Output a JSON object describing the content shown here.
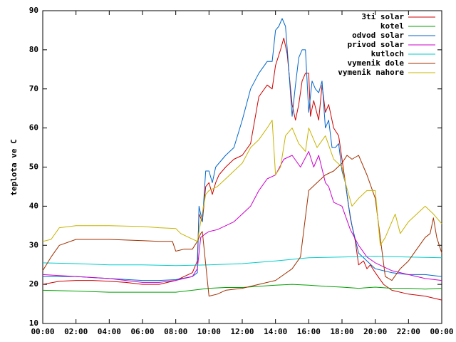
{
  "chart_data": {
    "type": "line",
    "title": "",
    "xlabel": "",
    "ylabel": "teplota ve C",
    "xlim": [
      0,
      24
    ],
    "ylim": [
      10,
      90
    ],
    "x_ticks": [
      {
        "value": 0,
        "label": "00:00"
      },
      {
        "value": 2,
        "label": "02:00"
      },
      {
        "value": 4,
        "label": "04:00"
      },
      {
        "value": 6,
        "label": "06:00"
      },
      {
        "value": 8,
        "label": "08:00"
      },
      {
        "value": 10,
        "label": "10:00"
      },
      {
        "value": 12,
        "label": "12:00"
      },
      {
        "value": 14,
        "label": "14:00"
      },
      {
        "value": 16,
        "label": "16:00"
      },
      {
        "value": 18,
        "label": "18:00"
      },
      {
        "value": 20,
        "label": "20:00"
      },
      {
        "value": 22,
        "label": "22:00"
      },
      {
        "value": 24,
        "label": "00:00"
      }
    ],
    "y_ticks": [
      10,
      20,
      30,
      40,
      50,
      60,
      70,
      80,
      90
    ],
    "grid": false,
    "legend_position": "top-right",
    "series": [
      {
        "name": "3ti solar",
        "color": "#cc0000",
        "points": [
          [
            0,
            20
          ],
          [
            1,
            20.8
          ],
          [
            2,
            21
          ],
          [
            3,
            21
          ],
          [
            4,
            20.8
          ],
          [
            5,
            20.5
          ],
          [
            6,
            20
          ],
          [
            7,
            20
          ],
          [
            8,
            21
          ],
          [
            9,
            23
          ],
          [
            9.3,
            26
          ],
          [
            9.4,
            38
          ],
          [
            9.6,
            36
          ],
          [
            9.8,
            45
          ],
          [
            10,
            46
          ],
          [
            10.2,
            43
          ],
          [
            10.4,
            46
          ],
          [
            10.6,
            48
          ],
          [
            11,
            50
          ],
          [
            11.5,
            52
          ],
          [
            12,
            53
          ],
          [
            12.5,
            56
          ],
          [
            13,
            68
          ],
          [
            13.5,
            71
          ],
          [
            13.8,
            70
          ],
          [
            14,
            76
          ],
          [
            14.3,
            80
          ],
          [
            14.5,
            83
          ],
          [
            14.7,
            79
          ],
          [
            15,
            66
          ],
          [
            15.2,
            62
          ],
          [
            15.4,
            66
          ],
          [
            15.6,
            72
          ],
          [
            15.8,
            74
          ],
          [
            16,
            74
          ],
          [
            16.1,
            63
          ],
          [
            16.3,
            67
          ],
          [
            16.6,
            62
          ],
          [
            16.8,
            71
          ],
          [
            17,
            64
          ],
          [
            17.2,
            66
          ],
          [
            17.5,
            60
          ],
          [
            17.8,
            58
          ],
          [
            18,
            52
          ],
          [
            18.2,
            46
          ],
          [
            18.5,
            37
          ],
          [
            18.8,
            31
          ],
          [
            19,
            25
          ],
          [
            19.3,
            26
          ],
          [
            19.5,
            24
          ],
          [
            19.7,
            25
          ],
          [
            20,
            23
          ],
          [
            20.5,
            20
          ],
          [
            21,
            18.5
          ],
          [
            22,
            17.5
          ],
          [
            23,
            17
          ],
          [
            24,
            16
          ]
        ]
      },
      {
        "name": "kotel",
        "color": "#00a000",
        "points": [
          [
            0,
            18.5
          ],
          [
            2,
            18.3
          ],
          [
            4,
            18
          ],
          [
            6,
            18
          ],
          [
            8,
            18
          ],
          [
            9,
            18.5
          ],
          [
            10,
            19
          ],
          [
            11,
            19.2
          ],
          [
            12,
            19.2
          ],
          [
            13,
            19.5
          ],
          [
            14,
            19.8
          ],
          [
            15,
            20
          ],
          [
            16,
            19.8
          ],
          [
            17,
            19.5
          ],
          [
            18,
            19.3
          ],
          [
            19,
            19
          ],
          [
            20,
            19.3
          ],
          [
            21,
            19
          ],
          [
            22,
            19
          ],
          [
            23,
            18.8
          ],
          [
            24,
            19
          ]
        ]
      },
      {
        "name": "odvod solar",
        "color": "#0066cc",
        "points": [
          [
            0,
            22
          ],
          [
            2,
            22
          ],
          [
            4,
            21.5
          ],
          [
            6,
            21
          ],
          [
            7,
            21
          ],
          [
            8,
            21.2
          ],
          [
            9,
            22
          ],
          [
            9.3,
            23
          ],
          [
            9.4,
            40
          ],
          [
            9.6,
            36
          ],
          [
            9.8,
            49
          ],
          [
            10,
            49
          ],
          [
            10.2,
            46
          ],
          [
            10.4,
            50
          ],
          [
            10.6,
            51
          ],
          [
            11,
            53
          ],
          [
            11.5,
            55
          ],
          [
            12,
            62
          ],
          [
            12.5,
            70
          ],
          [
            13,
            74
          ],
          [
            13.5,
            77
          ],
          [
            13.8,
            77
          ],
          [
            14,
            85
          ],
          [
            14.2,
            86
          ],
          [
            14.4,
            88
          ],
          [
            14.6,
            86
          ],
          [
            14.8,
            75
          ],
          [
            15,
            63
          ],
          [
            15.2,
            71
          ],
          [
            15.4,
            78
          ],
          [
            15.6,
            80
          ],
          [
            15.8,
            80
          ],
          [
            16,
            64
          ],
          [
            16.2,
            72
          ],
          [
            16.4,
            70
          ],
          [
            16.6,
            69
          ],
          [
            16.8,
            72
          ],
          [
            17,
            60
          ],
          [
            17.2,
            62
          ],
          [
            17.4,
            55
          ],
          [
            17.6,
            55
          ],
          [
            17.8,
            56
          ],
          [
            18,
            49
          ],
          [
            18.2,
            46
          ],
          [
            18.4,
            40
          ],
          [
            18.6,
            35
          ],
          [
            19,
            28
          ],
          [
            19.5,
            26
          ],
          [
            20,
            24
          ],
          [
            21,
            23
          ],
          [
            22,
            22.5
          ],
          [
            23,
            22.5
          ],
          [
            24,
            22
          ]
        ]
      },
      {
        "name": "privod solar",
        "color": "#cc00cc",
        "points": [
          [
            0,
            22.5
          ],
          [
            2,
            22
          ],
          [
            4,
            21.5
          ],
          [
            6,
            20.5
          ],
          [
            7,
            20.5
          ],
          [
            8,
            21
          ],
          [
            9,
            22
          ],
          [
            9.3,
            24
          ],
          [
            9.5,
            32
          ],
          [
            9.8,
            33
          ],
          [
            10,
            33.5
          ],
          [
            10.5,
            34
          ],
          [
            11,
            35
          ],
          [
            11.5,
            36
          ],
          [
            12,
            38
          ],
          [
            12.5,
            40
          ],
          [
            13,
            44
          ],
          [
            13.5,
            47
          ],
          [
            14,
            48
          ],
          [
            14.5,
            52
          ],
          [
            15,
            53
          ],
          [
            15.5,
            50
          ],
          [
            16,
            54
          ],
          [
            16.3,
            50
          ],
          [
            16.6,
            53
          ],
          [
            17,
            46
          ],
          [
            17.2,
            45
          ],
          [
            17.5,
            41
          ],
          [
            18,
            40
          ],
          [
            18.5,
            34
          ],
          [
            19,
            30
          ],
          [
            19.5,
            27
          ],
          [
            20,
            25.5
          ],
          [
            21,
            23.5
          ],
          [
            22,
            22.5
          ],
          [
            23,
            21.5
          ],
          [
            24,
            21
          ]
        ]
      },
      {
        "name": "kutloch",
        "color": "#00cccc",
        "points": [
          [
            0,
            25.5
          ],
          [
            2,
            25.3
          ],
          [
            4,
            25
          ],
          [
            6,
            25
          ],
          [
            8,
            24.8
          ],
          [
            10,
            25
          ],
          [
            12,
            25.3
          ],
          [
            14,
            26
          ],
          [
            16,
            26.8
          ],
          [
            18,
            27
          ],
          [
            20,
            27.2
          ],
          [
            22,
            27
          ],
          [
            24,
            26.8
          ]
        ]
      },
      {
        "name": "vymenik dole",
        "color": "#a03000",
        "points": [
          [
            0,
            23.5
          ],
          [
            0.5,
            27
          ],
          [
            1,
            30
          ],
          [
            2,
            31.5
          ],
          [
            4,
            31.5
          ],
          [
            6,
            31.2
          ],
          [
            7,
            31
          ],
          [
            7.8,
            31
          ],
          [
            8,
            28.5
          ],
          [
            8.5,
            29
          ],
          [
            9,
            29
          ],
          [
            9.3,
            31
          ],
          [
            9.5,
            33
          ],
          [
            9.6,
            33.5
          ],
          [
            10,
            17
          ],
          [
            10.5,
            17.5
          ],
          [
            11,
            18.5
          ],
          [
            12,
            19
          ],
          [
            13,
            20
          ],
          [
            14,
            21
          ],
          [
            15,
            24
          ],
          [
            15.5,
            27
          ],
          [
            16,
            44
          ],
          [
            16.5,
            46
          ],
          [
            17,
            48
          ],
          [
            17.5,
            49
          ],
          [
            18,
            51
          ],
          [
            18.3,
            53
          ],
          [
            18.6,
            52
          ],
          [
            19,
            53
          ],
          [
            19.5,
            48
          ],
          [
            20,
            42
          ],
          [
            20.3,
            32
          ],
          [
            20.6,
            22
          ],
          [
            21,
            21
          ],
          [
            21.5,
            24
          ],
          [
            22,
            26
          ],
          [
            22.5,
            29
          ],
          [
            23,
            32
          ],
          [
            23.3,
            33
          ],
          [
            23.5,
            37
          ],
          [
            23.7,
            32
          ],
          [
            24,
            28
          ]
        ]
      },
      {
        "name": "vymenik nahore",
        "color": "#c8b400",
        "points": [
          [
            0,
            31
          ],
          [
            0.5,
            31.5
          ],
          [
            1,
            34.5
          ],
          [
            2,
            35
          ],
          [
            4,
            35
          ],
          [
            6,
            34.8
          ],
          [
            7,
            34.5
          ],
          [
            8,
            34.3
          ],
          [
            8.3,
            33
          ],
          [
            8.8,
            32
          ],
          [
            9.3,
            31
          ],
          [
            9.5,
            36
          ],
          [
            9.8,
            43
          ],
          [
            10,
            44
          ],
          [
            10.5,
            45
          ],
          [
            11,
            47
          ],
          [
            11.5,
            49
          ],
          [
            12,
            51
          ],
          [
            12.5,
            55
          ],
          [
            13,
            57
          ],
          [
            13.5,
            60
          ],
          [
            13.8,
            62
          ],
          [
            14,
            48
          ],
          [
            14.3,
            50
          ],
          [
            14.6,
            58
          ],
          [
            15,
            60
          ],
          [
            15.4,
            56
          ],
          [
            15.8,
            54
          ],
          [
            16,
            60
          ],
          [
            16.5,
            55
          ],
          [
            17,
            58
          ],
          [
            17.5,
            52
          ],
          [
            18,
            50
          ],
          [
            18.2,
            46
          ],
          [
            18.6,
            40
          ],
          [
            19,
            42
          ],
          [
            19.5,
            44
          ],
          [
            20,
            44
          ],
          [
            20.3,
            30
          ],
          [
            20.6,
            32
          ],
          [
            21,
            36
          ],
          [
            21.2,
            38
          ],
          [
            21.5,
            33
          ],
          [
            22,
            36
          ],
          [
            22.5,
            38
          ],
          [
            23,
            40
          ],
          [
            23.5,
            38
          ],
          [
            24,
            35.5
          ]
        ]
      }
    ]
  }
}
